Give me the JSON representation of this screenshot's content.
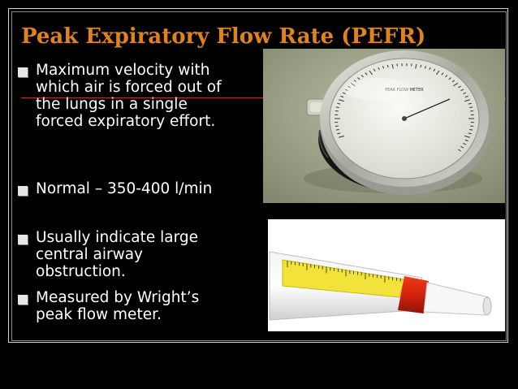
{
  "slide": {
    "title": "Peak Expiratory Flow Rate (PEFR)",
    "bullets": [
      {
        "text": "Maximum velocity with\nwhich air is forced out of\nthe lungs in a single\nforced expiratory effort."
      },
      {
        "text": "Normal – 350-400 l/min"
      },
      {
        "text": "Usually indicate large\ncentral airway\nobstruction."
      },
      {
        "text": "Measured by Wright’s\npeak flow meter."
      }
    ]
  },
  "colors": {
    "background": "#000000",
    "title": "#e0831a",
    "rule": "#b8341f",
    "text": "#ffffff"
  },
  "images": {
    "wright_meter": {
      "icon": "wright-peak-flow-meter-photo"
    },
    "mini_meter": {
      "icon": "mini-peak-flow-meter-photo"
    }
  }
}
